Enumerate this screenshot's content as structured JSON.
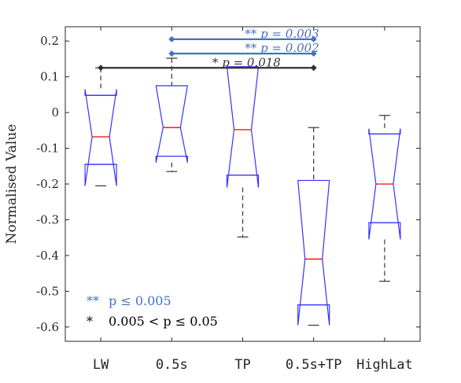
{
  "chart_data": {
    "type": "box",
    "ylabel": "Normalised Value",
    "ylim": [
      -0.64,
      0.24
    ],
    "yticks": [
      0.2,
      0.1,
      0,
      -0.1,
      -0.2,
      -0.3,
      -0.4,
      -0.5,
      -0.6
    ],
    "ytick_labels": [
      "0.2",
      "0.1",
      "0",
      "-0.1",
      "-0.2",
      "-0.3",
      "-0.4",
      "-0.5",
      "-0.6"
    ],
    "categories": [
      "LW",
      "0.5s",
      "TP",
      "0.5s+TP",
      "HighLat"
    ],
    "boxes": [
      {
        "category": "LW",
        "min": -0.205,
        "q1": -0.145,
        "median": -0.068,
        "q3": 0.048,
        "max": 0.125,
        "notch_low": -0.205,
        "notch_high": 0.065
      },
      {
        "category": "0.5s",
        "min": -0.165,
        "q1": -0.122,
        "median": -0.042,
        "q3": 0.075,
        "max": 0.152,
        "notch_low": -0.14,
        "notch_high": 0.075
      },
      {
        "category": "TP",
        "min": -0.348,
        "q1": -0.175,
        "median": -0.048,
        "q3": 0.128,
        "max": 0.128,
        "notch_low": -0.21,
        "notch_high": 0.128
      },
      {
        "category": "0.5s+TP",
        "min": -0.595,
        "q1": -0.538,
        "median": -0.41,
        "q3": -0.19,
        "max": -0.042,
        "notch_low": -0.595,
        "notch_high": -0.19
      },
      {
        "category": "HighLat",
        "min": -0.472,
        "q1": -0.308,
        "median": -0.2,
        "q3": -0.06,
        "max": -0.008,
        "notch_low": -0.355,
        "notch_high": -0.045
      }
    ],
    "significance": [
      {
        "from": "0.5s",
        "to": "0.5s+TP",
        "y": 0.205,
        "marker": "**",
        "label": "p = 0.003",
        "color": "#4472c4"
      },
      {
        "from": "0.5s",
        "to": "0.5s+TP",
        "y": 0.165,
        "marker": "**",
        "label": "p = 0.002",
        "color": "#4472c4"
      },
      {
        "from": "LW",
        "to": "0.5s+TP",
        "y": 0.125,
        "marker": "*",
        "label": "p = 0.018",
        "color": "#333333"
      }
    ],
    "legend": [
      {
        "marker": "**",
        "text": "p ≤ 0.005",
        "color": "#4472c4"
      },
      {
        "marker": "*",
        "text": "0.005 < p ≤ 0.05",
        "color": "#000000"
      }
    ],
    "colors": {
      "box": "#3333ff",
      "median": "#ff0000",
      "whisker": "#333333",
      "axis": "#262626"
    }
  }
}
